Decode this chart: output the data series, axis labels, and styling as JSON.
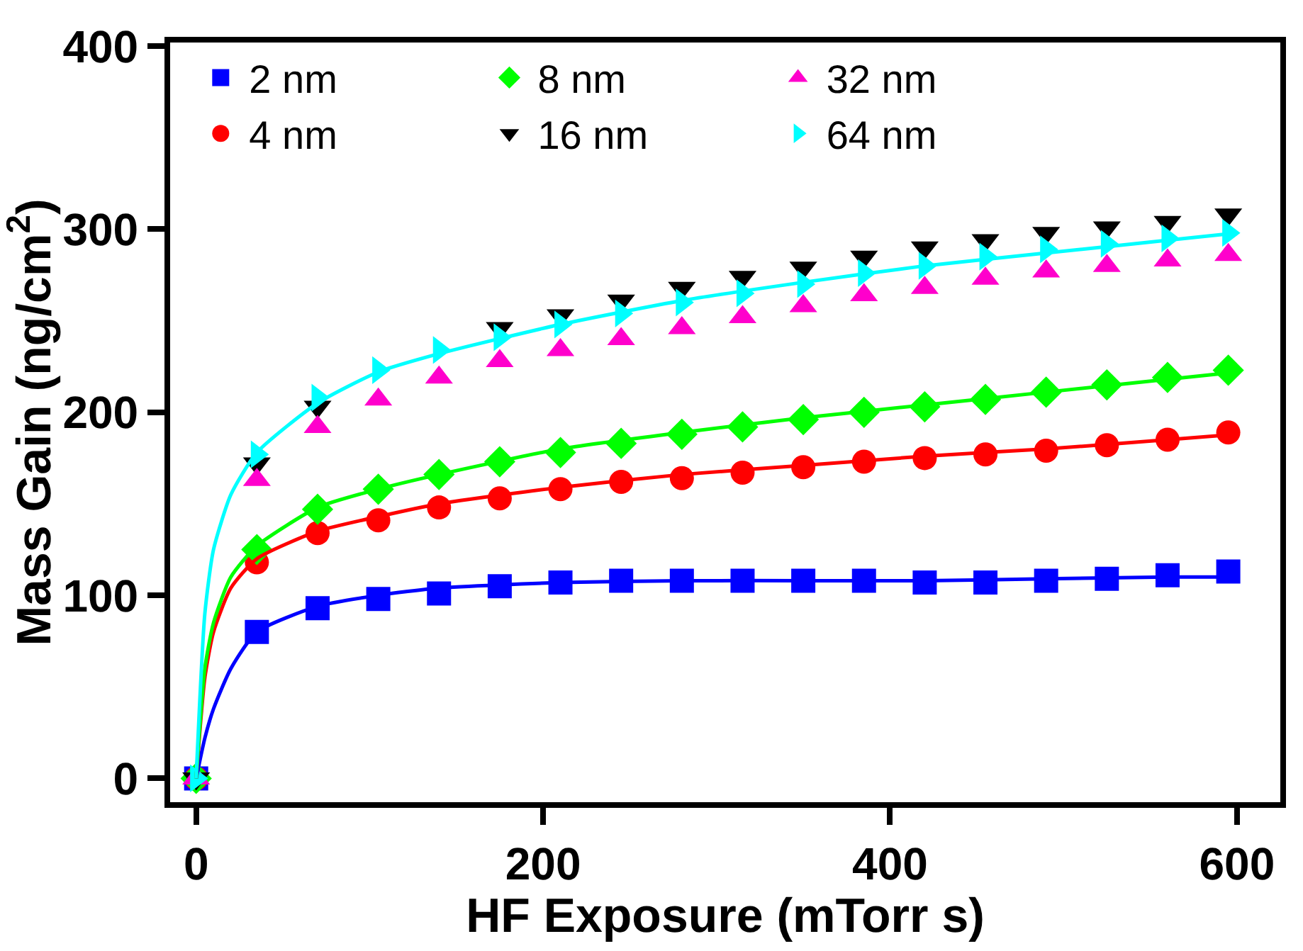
{
  "chart_data": {
    "type": "scatter",
    "xlabel": "HF Exposure (mTorr s)",
    "ylabel": "Mass Gain (ng/cm$^{2}$)",
    "x": [
      0,
      35,
      70,
      105,
      140,
      175,
      210,
      245,
      280,
      315,
      350,
      385,
      420,
      455,
      490,
      525,
      560,
      595
    ],
    "xlim": [
      -15,
      625
    ],
    "xticks": [
      0,
      200,
      400,
      600
    ],
    "ylim": [
      -13,
      402
    ],
    "yticks": [
      0,
      100,
      200,
      300,
      400
    ],
    "legend": "top left",
    "series": [
      {
        "name": "2 nm",
        "color": "#0000ff",
        "marker": "square",
        "values": [
          0,
          80,
          93,
          98,
          101,
          105,
          107,
          108,
          108,
          108,
          108,
          108,
          107,
          107,
          108,
          109,
          111,
          113
        ]
      },
      {
        "name": "4 nm",
        "color": "#ff0000",
        "marker": "circle",
        "values": [
          0,
          118,
          134,
          141,
          148,
          153,
          158,
          162,
          164,
          167,
          170,
          173,
          175,
          177,
          179,
          182,
          185,
          189
        ]
      },
      {
        "name": "8 nm",
        "color": "#00ff00",
        "marker": "diamond",
        "values": [
          0,
          125,
          147,
          158,
          166,
          173,
          178,
          183,
          188,
          192,
          196,
          200,
          203,
          207,
          211,
          215,
          219,
          223
        ]
      },
      {
        "name": "16 nm",
        "color": "#000000",
        "marker": "triangle-down",
        "values": [
          0,
          172,
          203,
          null,
          null,
          246,
          253,
          261,
          268,
          274,
          279,
          285,
          290,
          294,
          298,
          301,
          304,
          308
        ]
      },
      {
        "name": "32 nm",
        "color": "#ff00cc",
        "marker": "triangle",
        "values": [
          0,
          163,
          192,
          207,
          219,
          228,
          234,
          240,
          246,
          252,
          258,
          264,
          268,
          273,
          277,
          280,
          283,
          286
        ]
      },
      {
        "name": "64 nm",
        "color": "#00ffff",
        "marker": "triangle-right",
        "values": [
          0,
          177,
          208,
          223,
          234,
          241,
          248,
          254,
          260,
          265,
          270,
          276,
          280,
          285,
          289,
          292,
          295,
          298
        ]
      },
      {
        "type": "line",
        "color": "#0000ff",
        "x": [
          0,
          5,
          10,
          20,
          35,
          70,
          105,
          140,
          210,
          280,
          350,
          420,
          490,
          560,
          600
        ],
        "values": [
          0,
          22,
          38,
          60,
          80,
          94,
          100,
          104,
          107,
          108,
          108,
          108,
          109,
          110,
          110
        ]
      },
      {
        "type": "line",
        "color": "#ff0000",
        "x": [
          0,
          5,
          10,
          20,
          35,
          70,
          105,
          140,
          210,
          280,
          350,
          420,
          490,
          560,
          600
        ],
        "values": [
          0,
          55,
          80,
          104,
          120,
          135,
          143,
          150,
          159,
          166,
          171,
          176,
          180,
          185,
          188
        ]
      },
      {
        "type": "line",
        "color": "#00ff00",
        "x": [
          0,
          5,
          10,
          20,
          35,
          70,
          105,
          140,
          210,
          280,
          350,
          420,
          490,
          560,
          600
        ],
        "values": [
          0,
          60,
          85,
          110,
          127,
          148,
          158,
          166,
          180,
          189,
          197,
          204,
          211,
          218,
          222
        ]
      },
      {
        "type": "line",
        "color": "#00ffff",
        "x": [
          0,
          5,
          10,
          20,
          35,
          70,
          105,
          140,
          210,
          280,
          350,
          420,
          490,
          560,
          600
        ],
        "values": [
          0,
          90,
          125,
          155,
          178,
          205,
          222,
          232,
          248,
          261,
          271,
          280,
          287,
          294,
          298
        ]
      }
    ]
  }
}
